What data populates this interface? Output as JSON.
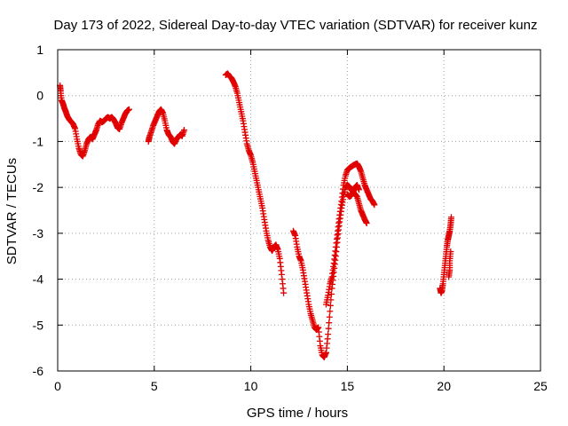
{
  "chart_data": {
    "type": "scatter",
    "title": "Day 173 of 2022, Sidereal Day-to-day VTEC variation (SDTVAR) for receiver kunz",
    "xlabel": "GPS time / hours",
    "ylabel": "SDTVAR / TECUs",
    "xlim": [
      0,
      25
    ],
    "ylim": [
      -6,
      1
    ],
    "xticks": [
      0,
      5,
      10,
      15,
      20,
      25
    ],
    "yticks": [
      -6,
      -5,
      -4,
      -3,
      -2,
      -1,
      0,
      1
    ],
    "grid": true,
    "marker": "plus",
    "color": "#e00000",
    "series": [
      {
        "segments": [
          [
            [
              0.12,
              0.22
            ],
            [
              0.15,
              0.1
            ],
            [
              0.2,
              -0.1
            ],
            [
              0.28,
              -0.18
            ],
            [
              0.35,
              -0.28
            ],
            [
              0.42,
              -0.35
            ],
            [
              0.5,
              -0.45
            ],
            [
              0.6,
              -0.52
            ],
            [
              0.7,
              -0.57
            ],
            [
              0.8,
              -0.62
            ],
            [
              0.9,
              -0.72
            ],
            [
              1.0,
              -0.95
            ],
            [
              1.1,
              -1.15
            ],
            [
              1.2,
              -1.28
            ],
            [
              1.3,
              -1.32
            ],
            [
              1.4,
              -1.2
            ],
            [
              1.5,
              -1.05
            ],
            [
              1.6,
              -0.95
            ],
            [
              1.7,
              -0.9
            ],
            [
              1.8,
              -0.95
            ],
            [
              1.9,
              -0.85
            ],
            [
              2.0,
              -0.75
            ],
            [
              2.1,
              -0.62
            ],
            [
              2.2,
              -0.55
            ],
            [
              2.3,
              -0.58
            ],
            [
              2.4,
              -0.55
            ],
            [
              2.5,
              -0.5
            ],
            [
              2.6,
              -0.47
            ],
            [
              2.7,
              -0.5
            ],
            [
              2.8,
              -0.47
            ],
            [
              2.9,
              -0.52
            ],
            [
              3.0,
              -0.6
            ],
            [
              3.1,
              -0.7
            ],
            [
              3.2,
              -0.73
            ],
            [
              3.3,
              -0.6
            ],
            [
              3.4,
              -0.5
            ],
            [
              3.5,
              -0.4
            ],
            [
              3.6,
              -0.33
            ],
            [
              3.7,
              -0.3
            ]
          ],
          [
            [
              4.7,
              -1.0
            ],
            [
              4.75,
              -0.9
            ],
            [
              4.85,
              -0.78
            ],
            [
              4.95,
              -0.65
            ],
            [
              5.05,
              -0.55
            ],
            [
              5.15,
              -0.45
            ],
            [
              5.25,
              -0.35
            ],
            [
              5.35,
              -0.3
            ],
            [
              5.45,
              -0.38
            ],
            [
              5.55,
              -0.55
            ],
            [
              5.65,
              -0.75
            ],
            [
              5.75,
              -0.85
            ],
            [
              5.85,
              -0.9
            ],
            [
              5.95,
              -1.0
            ],
            [
              6.05,
              -1.05
            ],
            [
              6.15,
              -0.95
            ],
            [
              6.25,
              -0.9
            ],
            [
              6.35,
              -0.85
            ],
            [
              6.45,
              -0.88
            ],
            [
              6.55,
              -0.75
            ]
          ],
          [
            [
              8.7,
              0.45
            ],
            [
              8.8,
              0.48
            ],
            [
              8.9,
              0.42
            ],
            [
              9.0,
              0.38
            ],
            [
              9.1,
              0.3
            ],
            [
              9.2,
              0.2
            ],
            [
              9.3,
              0.05
            ],
            [
              9.4,
              -0.15
            ],
            [
              9.5,
              -0.35
            ],
            [
              9.6,
              -0.55
            ],
            [
              9.7,
              -0.8
            ],
            [
              9.8,
              -1.05
            ],
            [
              9.9,
              -1.2
            ],
            [
              10.0,
              -1.3
            ],
            [
              10.1,
              -1.45
            ],
            [
              10.2,
              -1.65
            ],
            [
              10.3,
              -1.85
            ],
            [
              10.4,
              -2.05
            ],
            [
              10.5,
              -2.25
            ],
            [
              10.6,
              -2.45
            ],
            [
              10.7,
              -2.7
            ],
            [
              10.8,
              -2.95
            ],
            [
              10.9,
              -3.15
            ],
            [
              11.0,
              -3.3
            ],
            [
              11.1,
              -3.38
            ],
            [
              11.2,
              -3.3
            ],
            [
              11.3,
              -3.25
            ],
            [
              11.4,
              -3.35
            ],
            [
              11.5,
              -3.55
            ],
            [
              11.6,
              -3.9
            ],
            [
              11.7,
              -4.3
            ]
          ],
          [
            [
              12.2,
              -2.95
            ],
            [
              12.3,
              -3.05
            ],
            [
              12.4,
              -3.3
            ],
            [
              12.5,
              -3.5
            ],
            [
              12.6,
              -3.6
            ],
            [
              12.7,
              -3.8
            ],
            [
              12.8,
              -4.05
            ],
            [
              12.9,
              -4.3
            ],
            [
              13.0,
              -4.55
            ],
            [
              13.1,
              -4.75
            ],
            [
              13.2,
              -4.9
            ],
            [
              13.3,
              -5.05
            ],
            [
              13.4,
              -5.1
            ],
            [
              13.5,
              -5.05
            ],
            [
              13.6,
              -5.45
            ],
            [
              13.7,
              -5.65
            ],
            [
              13.8,
              -5.7
            ],
            [
              13.9,
              -5.6
            ],
            [
              14.0,
              -5.2
            ],
            [
              14.1,
              -4.7
            ],
            [
              14.2,
              -4.2
            ],
            [
              14.3,
              -3.85
            ],
            [
              14.4,
              -3.5
            ],
            [
              14.5,
              -3.1
            ],
            [
              14.6,
              -2.75
            ],
            [
              14.7,
              -2.45
            ],
            [
              14.8,
              -2.2
            ],
            [
              14.9,
              -2.0
            ],
            [
              15.0,
              -1.95
            ],
            [
              15.1,
              -1.98
            ],
            [
              15.2,
              -2.05
            ],
            [
              15.3,
              -2.1
            ],
            [
              15.4,
              -2.15
            ],
            [
              15.5,
              -2.2
            ],
            [
              15.6,
              -2.35
            ],
            [
              15.7,
              -2.5
            ],
            [
              15.8,
              -2.6
            ],
            [
              15.9,
              -2.7
            ],
            [
              16.0,
              -2.78
            ]
          ],
          [
            [
              13.9,
              -4.55
            ],
            [
              14.0,
              -4.35
            ],
            [
              14.1,
              -4.1
            ],
            [
              14.2,
              -3.95
            ],
            [
              14.3,
              -3.65
            ],
            [
              14.4,
              -3.3
            ],
            [
              14.5,
              -2.95
            ],
            [
              14.6,
              -2.6
            ],
            [
              14.7,
              -2.3
            ],
            [
              14.8,
              -1.95
            ],
            [
              14.9,
              -1.75
            ],
            [
              15.0,
              -1.62
            ],
            [
              15.1,
              -1.58
            ],
            [
              15.2,
              -1.55
            ],
            [
              15.3,
              -1.52
            ],
            [
              15.4,
              -1.5
            ],
            [
              15.5,
              -1.48
            ],
            [
              15.6,
              -1.55
            ],
            [
              15.7,
              -1.65
            ],
            [
              15.8,
              -1.8
            ],
            [
              15.9,
              -1.95
            ],
            [
              16.0,
              -2.05
            ],
            [
              16.1,
              -2.15
            ],
            [
              16.2,
              -2.25
            ],
            [
              16.3,
              -2.3
            ],
            [
              16.4,
              -2.38
            ]
          ],
          [
            [
              15.0,
              -2.15
            ],
            [
              15.1,
              -2.2
            ],
            [
              15.2,
              -2.18
            ],
            [
              15.3,
              -2.1
            ],
            [
              15.4,
              -2.0
            ],
            [
              15.5,
              -1.95
            ],
            [
              15.6,
              -2.05
            ]
          ],
          [
            [
              19.8,
              -4.2
            ],
            [
              19.85,
              -4.3
            ],
            [
              19.9,
              -4.25
            ],
            [
              19.95,
              -4.1
            ],
            [
              20.0,
              -3.9
            ],
            [
              20.05,
              -3.7
            ],
            [
              20.1,
              -3.5
            ],
            [
              20.15,
              -3.3
            ],
            [
              20.2,
              -3.15
            ],
            [
              20.25,
              -3.05
            ],
            [
              20.3,
              -2.95
            ],
            [
              20.35,
              -2.8
            ],
            [
              20.38,
              -2.65
            ]
          ],
          [
            [
              20.25,
              -3.95
            ],
            [
              20.3,
              -3.8
            ],
            [
              20.3,
              -3.6
            ],
            [
              20.35,
              -3.4
            ]
          ]
        ]
      }
    ]
  }
}
